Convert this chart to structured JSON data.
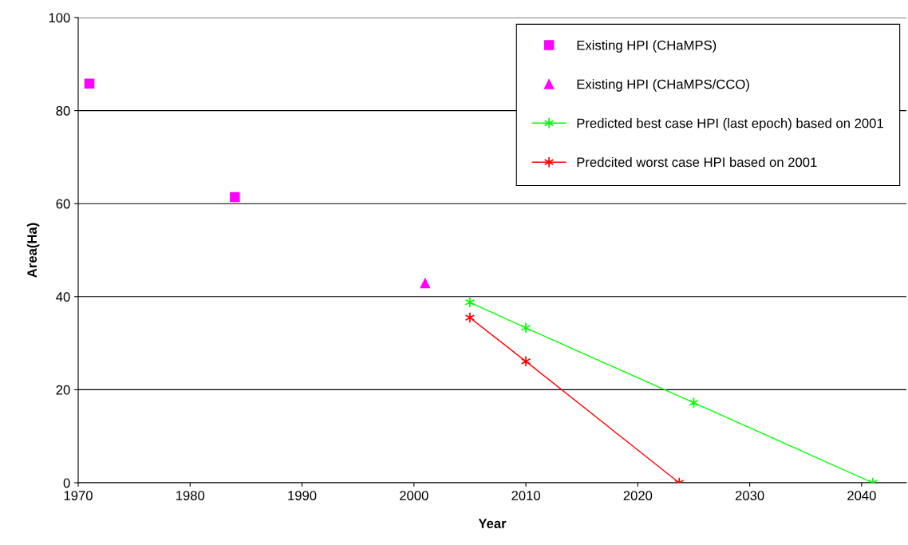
{
  "chart_data": {
    "type": "scatter",
    "xlabel": "Year",
    "ylabel": "Area(Ha)",
    "xlim": [
      1970,
      2044
    ],
    "xticks": [
      1970,
      1980,
      1990,
      2000,
      2010,
      2020,
      2030,
      2040
    ],
    "ylim": [
      0,
      100
    ],
    "yticks": [
      0,
      20,
      40,
      60,
      80,
      100
    ],
    "grid": "y",
    "legend": "top right",
    "series": [
      {
        "name": "Existing HPI (CHaMPS)",
        "marker": "square",
        "color": "#ff00ff",
        "x": [
          1971,
          1984
        ],
        "values": [
          85.8,
          61.4
        ]
      },
      {
        "name": "Existing HPI (CHaMPS/CCO)",
        "marker": "triangle",
        "color": "#ff00ff",
        "x": [
          2001
        ],
        "values": [
          42.9
        ]
      },
      {
        "name": "Predicted best case HPI (last epoch) based on 2001",
        "type": "line",
        "marker": "cross",
        "color": "#00ff00",
        "x": [
          2005,
          2010,
          2025,
          2041
        ],
        "values": [
          38.8,
          33.3,
          17.2,
          0
        ]
      },
      {
        "name": "Predcited worst case HPI based on 2001",
        "type": "line",
        "marker": "cross",
        "color": "#ff0000",
        "x": [
          2005,
          2010,
          2023.7
        ],
        "values": [
          35.5,
          26.1,
          0
        ]
      }
    ]
  }
}
